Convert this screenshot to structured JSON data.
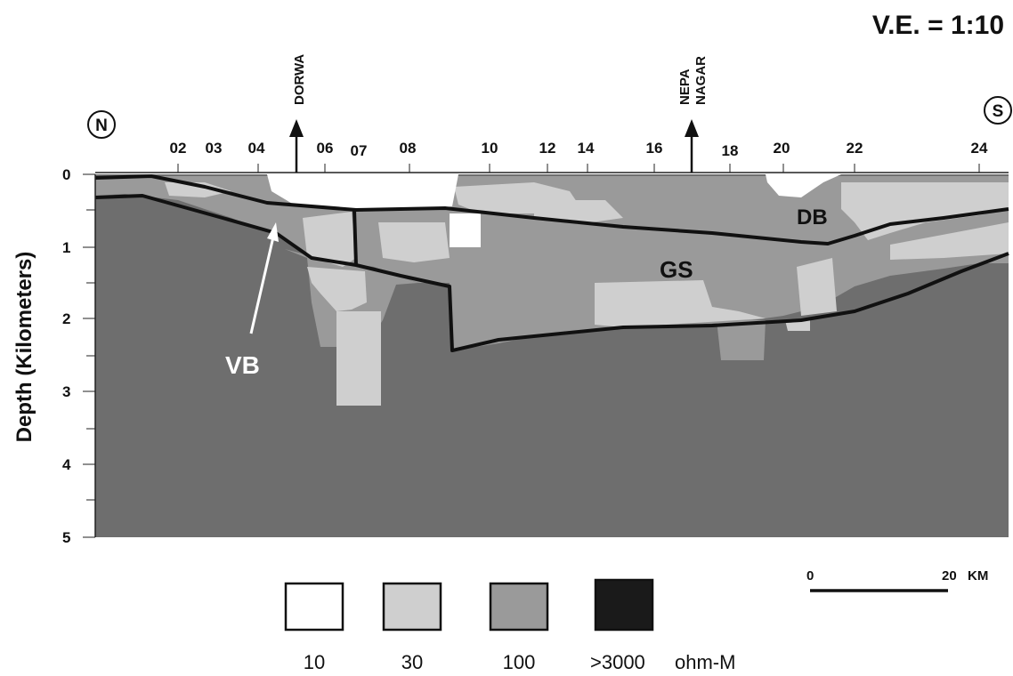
{
  "ve_label": "V.E. = 1:10",
  "north_label": "N",
  "south_label": "S",
  "stations": [
    "02",
    "03",
    "04",
    "06",
    "07",
    "08",
    "10",
    "12",
    "14",
    "16",
    "18",
    "20",
    "22",
    "24"
  ],
  "depth_axis": {
    "title": "Depth (Kilometers)",
    "ticks": [
      "0",
      "1",
      "2",
      "3",
      "4",
      "5"
    ]
  },
  "markers": {
    "dorwa": "DORWA",
    "nepa_line1": "NEPA",
    "nepa_line2": "NAGAR"
  },
  "annotations": {
    "db": "DB",
    "gs": "GS",
    "vb": "VB"
  },
  "scale_bar": {
    "start": "0",
    "end": "20",
    "unit": "KM"
  },
  "legend": {
    "items": [
      {
        "value": "10",
        "color": "#ffffff"
      },
      {
        "value": "30",
        "color": "#cfcfcf"
      },
      {
        "value": "100",
        "color": "#9a9a9a"
      },
      {
        "value": ">3000",
        "color": "#1a1a1a"
      }
    ],
    "unit": "ohm-M"
  },
  "colors": {
    "basement": "#6e6e6e",
    "medium": "#9a9a9a",
    "light": "#cfcfcf",
    "white": "#ffffff",
    "boundary": "#111111"
  }
}
